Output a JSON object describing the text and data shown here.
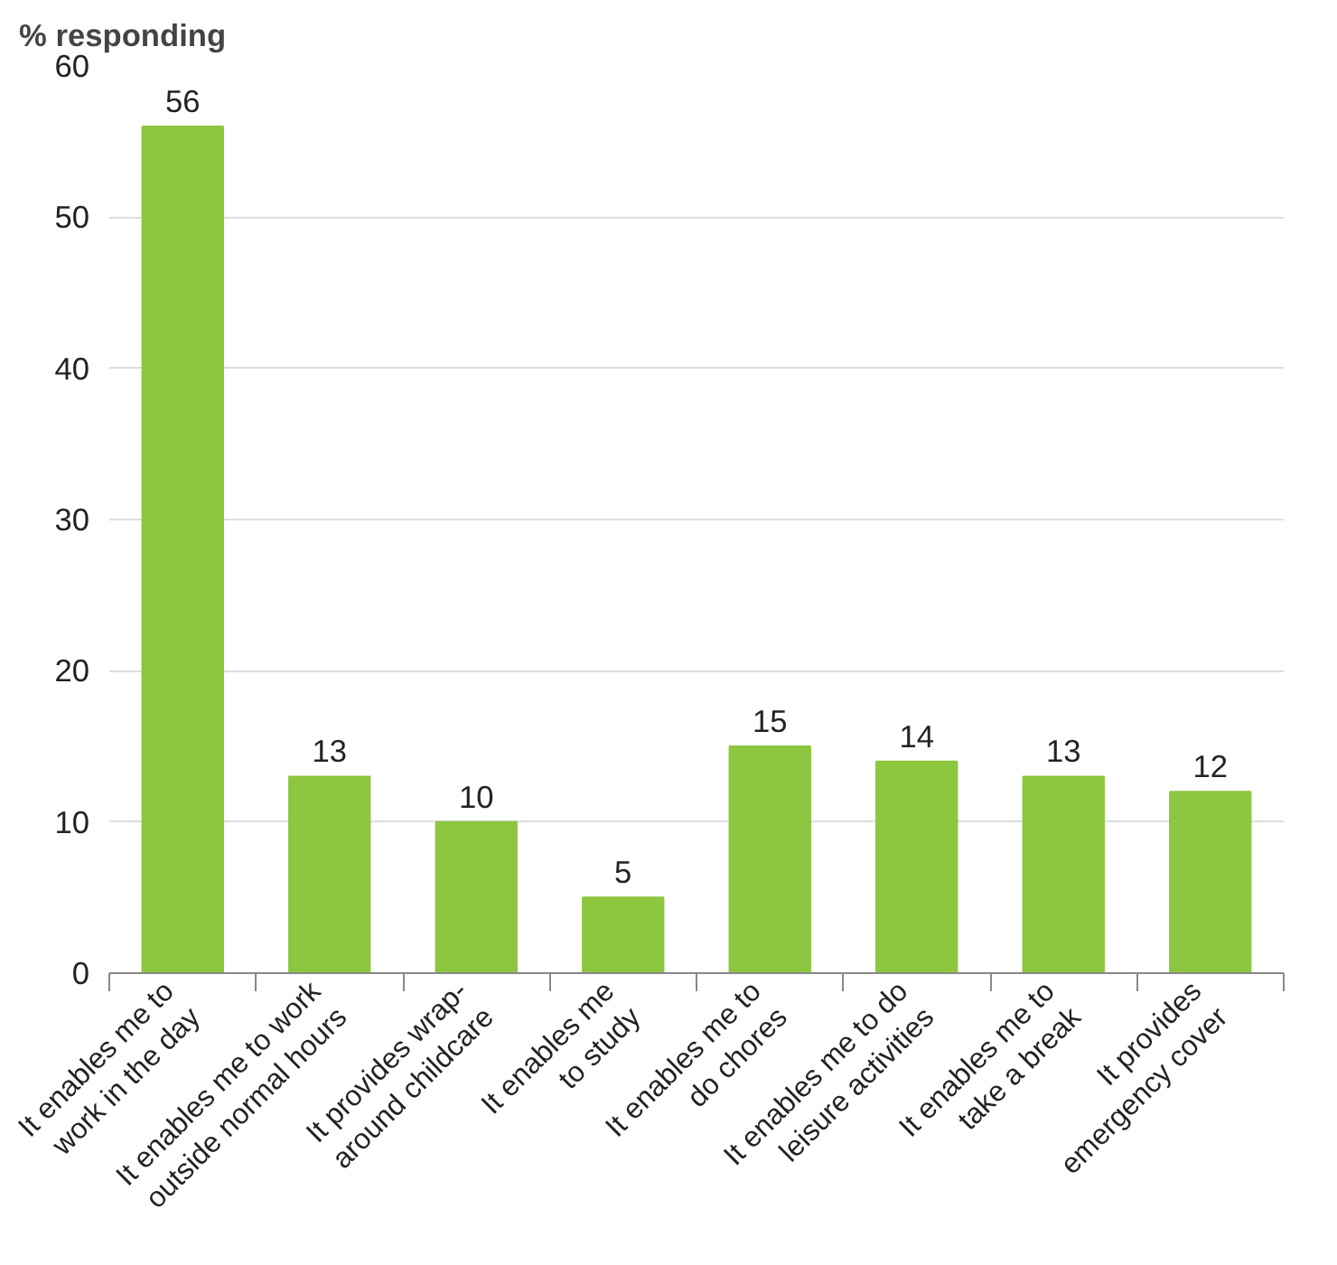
{
  "chart_data": {
    "type": "bar",
    "ylabel": "% responding",
    "categories": [
      "It enables me to\nwork in the day",
      "It enables me to work\noutside normal hours",
      "It provides wrap-\naround childcare",
      "It enables me\nto study",
      "It enables me to\ndo chores",
      "It enables me to do\nleisure activities",
      "It enables me to\ntake a break",
      "It provides\nemergency cover"
    ],
    "values": [
      56,
      13,
      10,
      5,
      15,
      14,
      13,
      12
    ],
    "color": "#8dc63f",
    "ylim": [
      0,
      60
    ],
    "yticks": [
      0,
      10,
      20,
      30,
      40,
      50,
      60
    ],
    "grid": "y",
    "data_labels": true
  }
}
